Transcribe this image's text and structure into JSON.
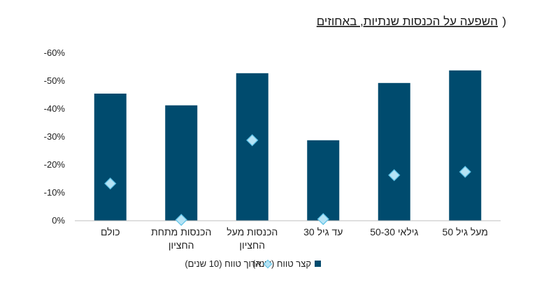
{
  "chart_data": {
    "type": "bar",
    "title_paren": ")",
    "title": "השפעה על הכנסות שנתיות, באחוזים",
    "categories": [
      [
        "כולם"
      ],
      [
        "הכנסות מתחת",
        "החציון"
      ],
      [
        "הכנסות מעל",
        "החציון"
      ],
      [
        "עד גיל 30"
      ],
      [
        "גילאי 50-30"
      ],
      [
        "מעל גיל 50"
      ]
    ],
    "series": [
      {
        "name": "קצר טווח (שנה)",
        "kind": "bar",
        "values": [
          -45.5,
          -41.3,
          -52.8,
          -28.8,
          -49.3,
          -53.8
        ]
      },
      {
        "name": "ארוך טווח (10 שנים)",
        "kind": "marker",
        "values": [
          -13.3,
          -0.3,
          -28.8,
          -0.6,
          -16.3,
          -17.5
        ]
      }
    ],
    "yticks": [
      "0%",
      "-10%",
      "-20%",
      "-30%",
      "-40%",
      "-50%",
      "-60%"
    ],
    "ylim": [
      0,
      -60
    ],
    "colors": {
      "bar": "#004b6e",
      "marker_fill": "#b5e3f5",
      "marker_stroke": "#5bc1e6",
      "axis": "#bfbfbf"
    },
    "legend_position": "bottom"
  }
}
